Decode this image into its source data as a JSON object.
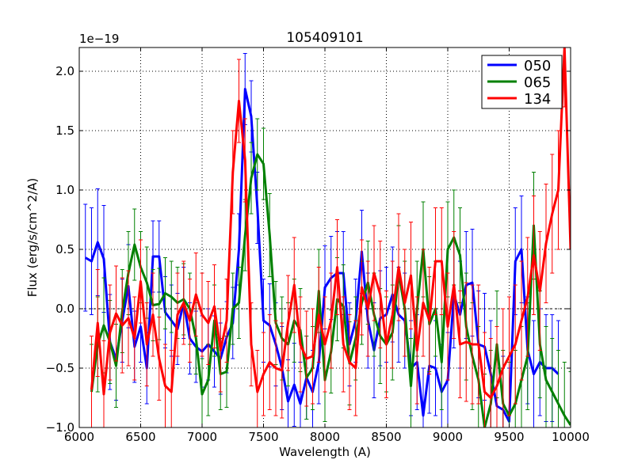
{
  "chart_data": {
    "type": "line",
    "title": "105409101",
    "xlabel": "Wavelength (A)",
    "ylabel": "Flux (erg/s/cm^2/A)",
    "y_scale_label": "1e−19",
    "xlim": [
      6000,
      10000
    ],
    "ylim": [
      -1.0,
      2.2
    ],
    "xticks": [
      6000,
      6500,
      7000,
      7500,
      8000,
      8500,
      9000,
      9500,
      10000
    ],
    "xtick_labels": [
      "6000",
      "6500",
      "7000",
      "7500",
      "8000",
      "8500",
      "9000",
      "9500",
      "10000"
    ],
    "yticks": [
      -1.0,
      -0.5,
      0.0,
      0.5,
      1.0,
      1.5,
      2.0
    ],
    "ytick_labels": [
      "−1.0",
      "−0.5",
      "0.0",
      "0.5",
      "1.0",
      "1.5",
      "2.0"
    ],
    "grid": true,
    "legend_position": "top-right",
    "series": [
      {
        "name": "050",
        "color": "#0000ff",
        "x": [
          6050,
          6100,
          6150,
          6200,
          6250,
          6300,
          6350,
          6400,
          6450,
          6500,
          6550,
          6600,
          6650,
          6700,
          6750,
          6800,
          6850,
          6900,
          6950,
          7000,
          7050,
          7100,
          7150,
          7200,
          7250,
          7300,
          7350,
          7400,
          7450,
          7500,
          7550,
          7600,
          7650,
          7700,
          7750,
          7800,
          7850,
          7900,
          7950,
          8000,
          8050,
          8100,
          8150,
          8200,
          8250,
          8300,
          8350,
          8400,
          8450,
          8500,
          8550,
          8600,
          8650,
          8700,
          8750,
          8800,
          8850,
          8900,
          8950,
          9000,
          9050,
          9100,
          9150,
          9200,
          9250,
          9300,
          9350,
          9400,
          9450,
          9500,
          9550,
          9600,
          9650,
          9700,
          9750,
          9800,
          9850,
          9900
        ],
        "values": [
          0.43,
          0.4,
          0.56,
          0.42,
          -0.28,
          -0.42,
          -0.1,
          0.19,
          -0.32,
          -0.15,
          -0.5,
          0.44,
          0.44,
          -0.03,
          -0.1,
          -0.17,
          0.05,
          -0.25,
          -0.32,
          -0.36,
          -0.3,
          -0.36,
          -0.42,
          -0.24,
          -0.12,
          0.5,
          1.85,
          1.62,
          0.85,
          -0.1,
          -0.14,
          -0.3,
          -0.5,
          -0.78,
          -0.64,
          -0.8,
          -0.58,
          -0.7,
          -0.45,
          0.18,
          0.26,
          0.3,
          0.3,
          -0.3,
          -0.1,
          0.48,
          -0.1,
          -0.35,
          -0.08,
          -0.05,
          0.12,
          -0.05,
          -0.1,
          -0.5,
          -0.45,
          -0.9,
          -0.48,
          -0.5,
          -0.7,
          -0.6,
          0.12,
          -0.05,
          0.2,
          0.22,
          -0.3,
          -0.32,
          -0.55,
          -0.82,
          -0.85,
          -0.95,
          0.4,
          0.5,
          -0.35,
          -0.55,
          -0.45,
          -0.5,
          -0.5,
          -0.55
        ],
        "errors": [
          0.45,
          0.45,
          0.45,
          0.45,
          0.4,
          0.35,
          0.35,
          0.35,
          0.3,
          0.3,
          0.3,
          0.3,
          0.3,
          0.3,
          0.3,
          0.3,
          0.3,
          0.3,
          0.3,
          0.3,
          0.3,
          0.3,
          0.3,
          0.3,
          0.3,
          0.3,
          0.3,
          0.3,
          0.3,
          0.35,
          0.35,
          0.35,
          0.35,
          0.35,
          0.35,
          0.35,
          0.35,
          0.35,
          0.35,
          0.35,
          0.35,
          0.35,
          0.35,
          0.35,
          0.35,
          0.35,
          0.4,
          0.4,
          0.4,
          0.4,
          0.4,
          0.4,
          0.4,
          0.4,
          0.4,
          0.4,
          0.4,
          0.4,
          0.4,
          0.4,
          0.45,
          0.45,
          0.45,
          0.45,
          0.45,
          0.45,
          0.45,
          0.45,
          0.45,
          0.45,
          0.45,
          0.45,
          0.45,
          0.45,
          0.45,
          0.45,
          0.45,
          0.45
        ]
      },
      {
        "name": "065",
        "color": "#008000",
        "x": [
          6100,
          6150,
          6200,
          6250,
          6300,
          6350,
          6400,
          6450,
          6500,
          6550,
          6600,
          6650,
          6700,
          6750,
          6800,
          6850,
          6900,
          6950,
          7000,
          7050,
          7100,
          7150,
          7200,
          7250,
          7300,
          7350,
          7400,
          7450,
          7500,
          7550,
          7600,
          7650,
          7700,
          7750,
          7800,
          7850,
          7900,
          7950,
          8000,
          8050,
          8100,
          8150,
          8200,
          8250,
          8300,
          8350,
          8400,
          8450,
          8500,
          8550,
          8600,
          8650,
          8700,
          8750,
          8800,
          8850,
          8900,
          8950,
          9000,
          9050,
          9100,
          9150,
          9200,
          9250,
          9300,
          9350,
          9400,
          9450,
          9500,
          9550,
          9600,
          9650,
          9700,
          9750,
          9800,
          9850,
          9900,
          9950,
          10000
        ],
        "values": [
          -0.7,
          -0.3,
          -0.14,
          -0.28,
          -0.48,
          -0.02,
          0.3,
          0.54,
          0.35,
          0.22,
          0.03,
          0.04,
          0.13,
          0.1,
          0.05,
          0.08,
          0.0,
          -0.25,
          -0.72,
          -0.6,
          -0.1,
          -0.55,
          -0.53,
          0.0,
          0.05,
          0.62,
          1.1,
          1.3,
          1.22,
          0.62,
          -0.12,
          -0.25,
          -0.3,
          -0.1,
          -0.18,
          -0.58,
          -0.5,
          0.15,
          -0.6,
          -0.36,
          0.08,
          0.02,
          -0.46,
          -0.25,
          0.05,
          0.22,
          -0.05,
          -0.23,
          -0.3,
          -0.2,
          0.3,
          0.0,
          -0.65,
          0.0,
          0.5,
          -0.13,
          0.0,
          -0.45,
          0.5,
          0.6,
          0.45,
          -0.15,
          -0.4,
          -0.6,
          -1.0,
          -0.8,
          -0.3,
          -0.8,
          -0.9,
          -0.8,
          -0.6,
          -0.4,
          0.7,
          -0.3,
          -0.6,
          -0.7,
          -0.8,
          -0.9,
          -0.98
        ],
        "errors": [
          0.4,
          0.4,
          0.4,
          0.35,
          0.35,
          0.35,
          0.35,
          0.3,
          0.3,
          0.3,
          0.3,
          0.3,
          0.3,
          0.3,
          0.3,
          0.3,
          0.3,
          0.3,
          0.3,
          0.3,
          0.3,
          0.3,
          0.3,
          0.3,
          0.3,
          0.3,
          0.3,
          0.3,
          0.3,
          0.35,
          0.35,
          0.35,
          0.35,
          0.35,
          0.35,
          0.35,
          0.35,
          0.35,
          0.35,
          0.35,
          0.35,
          0.35,
          0.35,
          0.35,
          0.35,
          0.35,
          0.35,
          0.4,
          0.4,
          0.4,
          0.4,
          0.4,
          0.4,
          0.4,
          0.4,
          0.4,
          0.4,
          0.4,
          0.4,
          0.4,
          0.4,
          0.45,
          0.45,
          0.45,
          0.45,
          0.45,
          0.45,
          0.45,
          0.45,
          0.45,
          0.45,
          0.45,
          0.45,
          0.45,
          0.45,
          0.45,
          0.45,
          0.45,
          0.45
        ]
      },
      {
        "name": "134",
        "color": "#ff0000",
        "x": [
          6100,
          6150,
          6200,
          6250,
          6300,
          6350,
          6400,
          6450,
          6500,
          6550,
          6600,
          6650,
          6700,
          6750,
          6800,
          6850,
          6900,
          6950,
          7000,
          7050,
          7100,
          7150,
          7200,
          7250,
          7300,
          7350,
          7400,
          7450,
          7500,
          7550,
          7600,
          7650,
          7700,
          7750,
          7800,
          7850,
          7900,
          7950,
          8000,
          8050,
          8100,
          8150,
          8200,
          8250,
          8300,
          8350,
          8400,
          8450,
          8500,
          8550,
          8600,
          8650,
          8700,
          8750,
          8800,
          8850,
          8900,
          8950,
          9000,
          9050,
          9100,
          9150,
          9200,
          9250,
          9300,
          9350,
          9400,
          9450,
          9500,
          9550,
          9600,
          9650,
          9700,
          9750,
          9800,
          9850,
          9900,
          9950,
          10000
        ],
        "values": [
          -0.68,
          -0.12,
          -0.72,
          -0.2,
          -0.04,
          -0.14,
          -0.08,
          -0.25,
          0.23,
          -0.3,
          -0.05,
          -0.42,
          -0.65,
          -0.7,
          -0.05,
          0.05,
          -0.1,
          0.12,
          -0.05,
          -0.12,
          0.02,
          -0.35,
          -0.1,
          1.15,
          1.75,
          1.25,
          -0.3,
          -0.7,
          -0.55,
          -0.45,
          -0.5,
          -0.52,
          -0.12,
          0.2,
          -0.3,
          -0.42,
          -0.4,
          -0.05,
          -0.3,
          -0.1,
          0.35,
          -0.3,
          -0.45,
          -0.5,
          0.18,
          0.0,
          0.3,
          0.12,
          -0.3,
          -0.05,
          0.35,
          0.05,
          0.28,
          -0.35,
          0.05,
          -0.1,
          0.4,
          0.4,
          -0.15,
          0.2,
          -0.3,
          -0.28,
          -0.3,
          -0.3,
          -0.7,
          -0.75,
          -0.65,
          -0.5,
          -0.4,
          -0.3,
          -0.1,
          0.1,
          0.45,
          0.15,
          0.55,
          0.8,
          1.0,
          2.2,
          0.5
        ],
        "errors": [
          0.45,
          0.45,
          0.45,
          0.4,
          0.4,
          0.4,
          0.4,
          0.35,
          0.35,
          0.35,
          0.35,
          0.35,
          0.35,
          0.35,
          0.35,
          0.35,
          0.35,
          0.35,
          0.35,
          0.35,
          0.35,
          0.35,
          0.35,
          0.35,
          0.35,
          0.35,
          0.35,
          0.35,
          0.35,
          0.4,
          0.4,
          0.4,
          0.4,
          0.4,
          0.4,
          0.4,
          0.4,
          0.4,
          0.4,
          0.4,
          0.4,
          0.4,
          0.4,
          0.4,
          0.4,
          0.4,
          0.4,
          0.45,
          0.45,
          0.45,
          0.45,
          0.45,
          0.45,
          0.45,
          0.45,
          0.45,
          0.45,
          0.45,
          0.45,
          0.45,
          0.45,
          0.5,
          0.5,
          0.5,
          0.5,
          0.5,
          0.5,
          0.5,
          0.5,
          0.5,
          0.5,
          0.5,
          0.5,
          0.5,
          0.5,
          0.5,
          0.5,
          0.5,
          0.5
        ]
      }
    ]
  }
}
